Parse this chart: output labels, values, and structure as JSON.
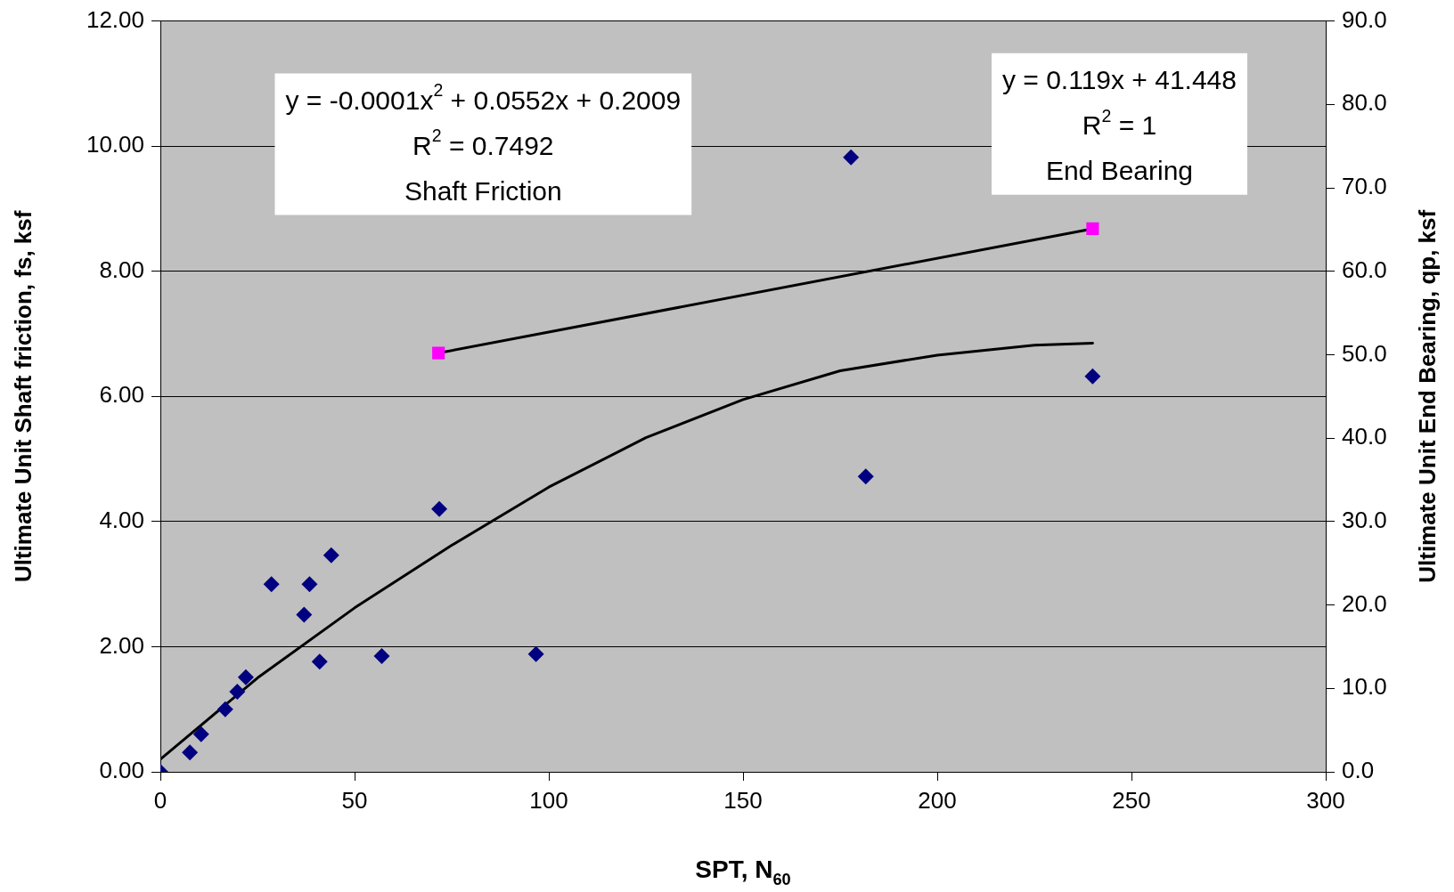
{
  "chart_data": {
    "type": "scatter",
    "xlabel": "SPT, N$_{60}$",
    "ylabel": "Ultimate Unit Shaft friction, fs, ksf",
    "y2label": "Ultimate Unit End Bearing, qp, ksf",
    "xlim": [
      0,
      300
    ],
    "xticks": [
      0,
      50,
      100,
      150,
      200,
      250,
      300
    ],
    "ylim": [
      0,
      12
    ],
    "yticks": [
      {
        "value": 0,
        "label": "0.00"
      },
      {
        "value": 2,
        "label": "2.00"
      },
      {
        "value": 4,
        "label": "4.00"
      },
      {
        "value": 6,
        "label": "6.00"
      },
      {
        "value": 8,
        "label": "8.00"
      },
      {
        "value": 10,
        "label": "10.00"
      },
      {
        "value": 12,
        "label": "12.00"
      }
    ],
    "y2lim": [
      0,
      90
    ],
    "y2ticks": [
      {
        "value": 0,
        "label": "0.0"
      },
      {
        "value": 10,
        "label": "10.0"
      },
      {
        "value": 20,
        "label": "20.0"
      },
      {
        "value": 30,
        "label": "30.0"
      },
      {
        "value": 40,
        "label": "40.0"
      },
      {
        "value": 50,
        "label": "50.0"
      },
      {
        "value": 60,
        "label": "60.0"
      },
      {
        "value": 70,
        "label": "70.0"
      },
      {
        "value": 80,
        "label": "80.0"
      },
      {
        "value": 90,
        "label": "90.0"
      }
    ],
    "grid": "y",
    "legend": false,
    "series": [
      {
        "type": "scatter",
        "marker": "diamond",
        "color": "#000080",
        "x": [
          0,
          7.6,
          10.5,
          16.7,
          19.8,
          22,
          28.6,
          37,
          38.4,
          41,
          44,
          57,
          71.8,
          96.7,
          177.8,
          181.6,
          240
        ],
        "values": [
          0,
          0.31,
          0.6,
          1.0,
          1.28,
          1.51,
          3.0,
          2.51,
          3.0,
          1.76,
          3.46,
          1.85,
          4.2,
          1.88,
          9.82,
          4.72,
          6.32
        ]
      },
      {
        "type": "line",
        "marker": "none",
        "color": "#000000",
        "x": [
          0,
          25,
          50,
          75,
          100,
          125,
          150,
          175,
          200,
          225,
          240
        ],
        "values": [
          0.2,
          1.5,
          2.62,
          3.62,
          4.55,
          5.34,
          5.95,
          6.41,
          6.66,
          6.82,
          6.85
        ]
      },
      {
        "type": "scatter",
        "marker": "square",
        "axis": "y2",
        "color": "#ff00ff",
        "x": [
          71.6,
          240
        ],
        "values": [
          50.2,
          65.1
        ]
      },
      {
        "type": "line",
        "marker": "none",
        "axis": "y2",
        "color": "#000000",
        "x": [
          71.6,
          240
        ],
        "values": [
          50.2,
          65.1
        ]
      }
    ],
    "annotations": [
      "y = -0.0001x$^{2}$ + 0.0552x + 0.2009\nR$^{2}$ = 0.7492\nShaft Friction",
      "y = 0.119x + 41.448\nR$^{2}$ = 1\nEnd Bearing"
    ]
  }
}
